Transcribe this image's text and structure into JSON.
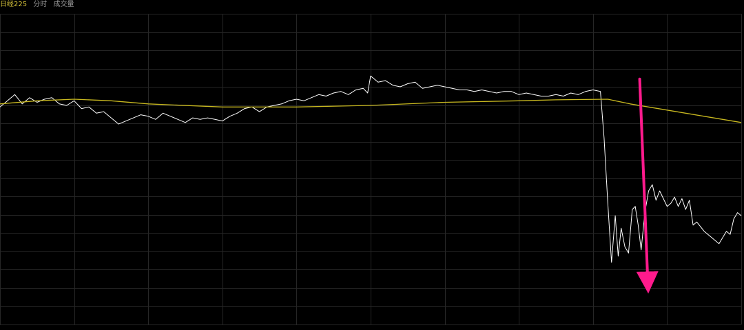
{
  "header": {
    "symbol": "日经225",
    "tab_intraday": "分时",
    "tab_volume": "成交量"
  },
  "colors": {
    "background": "#000000",
    "grid": "#262626",
    "price_line": "#ffffff",
    "average_line": "#c8b820",
    "annotation_arrow": "#ff1a8c",
    "symbol_text": "#d8c53a",
    "tab_text": "#9a9a9a"
  },
  "chart_data": {
    "type": "line",
    "title": "",
    "xlabel": "",
    "ylabel": "",
    "grid": true,
    "xlim": [
      0,
      100
    ],
    "ylim": [
      0,
      100
    ],
    "series": [
      {
        "name": "",
        "role": "price",
        "x": [
          0,
          1,
          2,
          3,
          4,
          5,
          6,
          7,
          8,
          9,
          10,
          11,
          12,
          13,
          14,
          15,
          16,
          17,
          18,
          19,
          20,
          21,
          22,
          23,
          24,
          25,
          26,
          27,
          28,
          29,
          30,
          31,
          32,
          33,
          34,
          35,
          36,
          37,
          38,
          39,
          40,
          41,
          42,
          43,
          44,
          45,
          46,
          47,
          48,
          49,
          49.6,
          50,
          51,
          52,
          53,
          54,
          55,
          56,
          57,
          58,
          59,
          60,
          61,
          62,
          63,
          64,
          65,
          66,
          67,
          68,
          69,
          70,
          71,
          72,
          73,
          74,
          75,
          76,
          77,
          78,
          79,
          80,
          81,
          81.5,
          82,
          82.5,
          83,
          83.4,
          83.8,
          84.3,
          84.8,
          85.3,
          85.7,
          86.1,
          86.5,
          87,
          87.5,
          88,
          88.5,
          89,
          90,
          90.5,
          91,
          91.5,
          92,
          92.5,
          93,
          93.5,
          94,
          95,
          96,
          97,
          98,
          98.5,
          99,
          99.5,
          100
        ],
        "y": [
          70.0,
          72.0,
          74.0,
          71.0,
          73.0,
          71.5,
          72.5,
          73.0,
          71.0,
          70.5,
          72.0,
          69.5,
          70.0,
          68.0,
          68.5,
          66.5,
          64.5,
          65.5,
          66.5,
          67.5,
          67.0,
          66.0,
          68.0,
          67.0,
          66.0,
          65.0,
          66.5,
          66.0,
          66.5,
          66.0,
          65.5,
          67.0,
          68.0,
          69.5,
          70.0,
          68.5,
          70.0,
          70.5,
          71.0,
          72.0,
          72.5,
          72.0,
          73.0,
          74.0,
          73.5,
          74.5,
          75.0,
          74.0,
          75.5,
          76.0,
          74.5,
          80.0,
          78.0,
          78.5,
          77.0,
          76.5,
          77.5,
          78.0,
          76.0,
          76.5,
          77.0,
          76.5,
          76.0,
          75.5,
          75.5,
          75.0,
          75.5,
          75.0,
          74.5,
          75.0,
          75.0,
          74.0,
          74.5,
          74.0,
          73.5,
          73.5,
          74.0,
          73.5,
          74.5,
          74.0,
          75.0,
          75.5,
          75.0,
          60.0,
          39.0,
          20.0,
          35.0,
          22.0,
          31.0,
          25.0,
          23.0,
          37.0,
          38.0,
          32.0,
          24.0,
          36.0,
          43.0,
          45.0,
          40.0,
          43.0,
          38.0,
          39.0,
          41.0,
          38.0,
          40.5,
          37.0,
          40.0,
          32.0,
          33.0,
          30.0,
          28.0,
          26.0,
          30.0,
          29.0,
          34.0,
          36.0,
          35.0
        ]
      },
      {
        "name": "",
        "role": "average",
        "x": [
          0,
          5,
          10,
          15,
          20,
          30,
          40,
          50,
          60,
          70,
          75,
          82,
          85,
          90,
          95,
          100
        ],
        "y": [
          71.0,
          72.0,
          72.5,
          72.0,
          71.0,
          70.0,
          70.0,
          70.5,
          71.5,
          72.0,
          72.3,
          72.5,
          71.0,
          69.0,
          67.0,
          65.0
        ]
      }
    ],
    "annotations": [
      {
        "type": "arrow",
        "from": [
          86.3,
          79.0
        ],
        "to": [
          87.4,
          13.5
        ]
      }
    ]
  }
}
